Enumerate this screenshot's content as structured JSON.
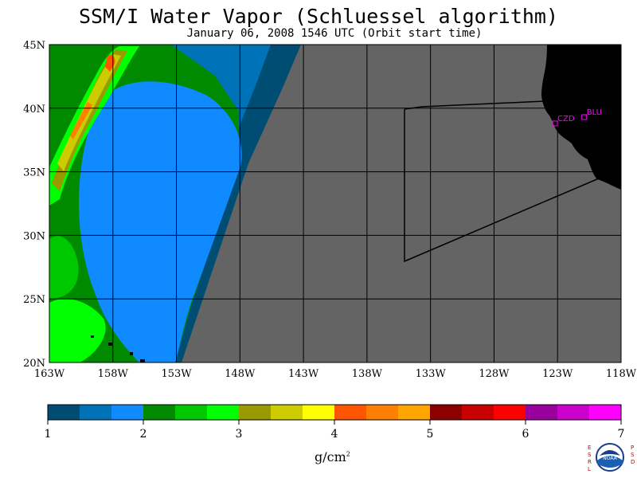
{
  "title": "SSM/I Water Vapor (Schluessel algorithm)",
  "subtitle": "January 06, 2008  1546 UTC  (Orbit start time)",
  "map": {
    "lon_ticks": [
      "163W",
      "158W",
      "153W",
      "148W",
      "143W",
      "138W",
      "133W",
      "128W",
      "123W",
      "118W"
    ],
    "lat_ticks": [
      "45N",
      "40N",
      "35N",
      "30N",
      "25N",
      "20N"
    ],
    "stations": [
      {
        "code": "CZD",
        "lon": -123.2,
        "lat": 38.8
      },
      {
        "code": "BLU",
        "lon": -120.9,
        "lat": 39.3
      }
    ],
    "colors": {
      "ocean_nodata": "#646464",
      "land": "#000000",
      "station": "#ff00ff"
    }
  },
  "colorbar": {
    "colors": [
      "#004d73",
      "#0072b8",
      "#0f8aff",
      "#008a00",
      "#00c800",
      "#00ff00",
      "#999900",
      "#cccc00",
      "#ffff00",
      "#ff5500",
      "#ff7f00",
      "#ffa500",
      "#8c0000",
      "#c80000",
      "#ff0000",
      "#99009e",
      "#cc00cc",
      "#ff00ff"
    ],
    "tick_labels": [
      "1",
      "2",
      "3",
      "4",
      "5",
      "6",
      "7"
    ],
    "units": "g/cm",
    "units_exp": "2"
  },
  "logo": {
    "left_letters": "ESRL",
    "right_letters": "PSD",
    "center": "NOAA"
  }
}
